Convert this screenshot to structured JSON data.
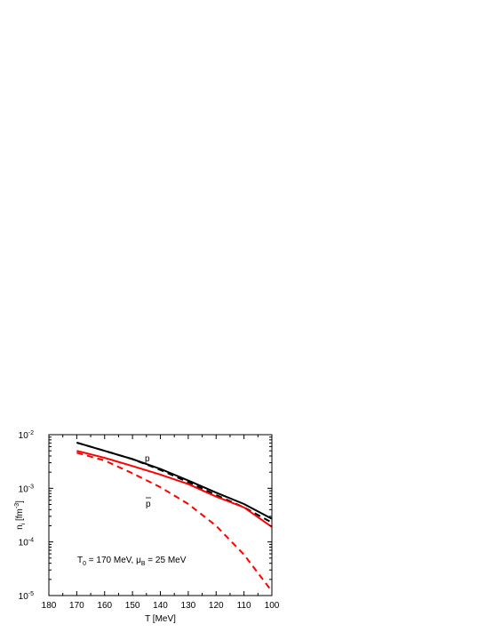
{
  "chart_data": {
    "type": "line",
    "xlabel": {
      "main": "T [MeV]"
    },
    "ylabel": {
      "parts": [
        "n",
        "i",
        " [fm",
        "-3",
        "]"
      ]
    },
    "annotation": {
      "parts": [
        "T",
        "0",
        " = 170 MeV, ",
        "μ",
        "B",
        " = 25 MeV"
      ]
    },
    "curve_labels": [
      "p",
      "p"
    ],
    "x": [
      170,
      160,
      150,
      140,
      130,
      120,
      110,
      100
    ],
    "series": [
      {
        "color": "#000000",
        "dash": false,
        "values": [
          0.0071,
          0.005,
          0.0035,
          0.0023,
          0.0014,
          0.00083,
          0.00051,
          0.00027
        ]
      },
      {
        "color": "#000000",
        "dash": true,
        "values": [
          0.0071,
          0.005,
          0.0035,
          0.0022,
          0.0013,
          0.00075,
          0.00044,
          0.00023
        ]
      },
      {
        "color": "#ff0000",
        "dash": false,
        "values": [
          0.005,
          0.0037,
          0.0026,
          0.0018,
          0.0012,
          0.0007,
          0.00044,
          0.00019
        ]
      },
      {
        "color": "#ff0000",
        "dash": true,
        "values": [
          0.0046,
          0.0033,
          0.0019,
          0.00105,
          0.00051,
          0.0002,
          5.8e-05,
          1.2e-05
        ]
      }
    ],
    "xlim": [
      180,
      100
    ],
    "xticks": [
      180,
      170,
      160,
      150,
      140,
      130,
      120,
      110,
      100
    ],
    "ylim": [
      1e-05,
      0.01
    ],
    "log_y": true,
    "yticks": [
      {
        "value": 0.01,
        "label": "10",
        "exponent": "-2"
      },
      {
        "value": 0.001,
        "label": "10",
        "exponent": "-3"
      },
      {
        "value": 0.0001,
        "label": "10",
        "exponent": "-4"
      },
      {
        "value": 1e-05,
        "label": "10",
        "exponent": "-5"
      }
    ]
  }
}
